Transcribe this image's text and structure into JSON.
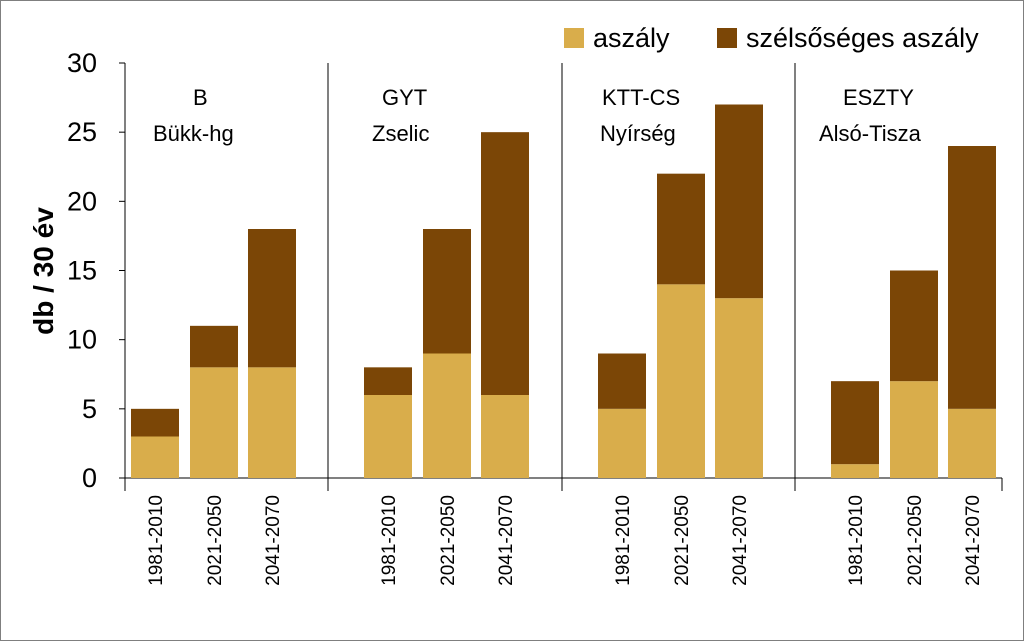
{
  "chart_data": {
    "type": "bar",
    "stacked": true,
    "xlabel": "",
    "ylabel": "db / 30 év",
    "ylim": [
      0,
      30
    ],
    "yticks": [
      0,
      5,
      10,
      15,
      20,
      25,
      30
    ],
    "grid": false,
    "legend_position": "top-right",
    "groups": [
      {
        "label_line1": "B",
        "label_line2": "Bükk-hg",
        "categories": [
          "1981-2010",
          "2021-2050",
          "2041-2070"
        ],
        "aszaly": [
          3,
          8,
          8
        ],
        "szelsoseges": [
          2,
          3,
          10
        ]
      },
      {
        "label_line1": "GYT",
        "label_line2": "Zselic",
        "categories": [
          "1981-2010",
          "2021-2050",
          "2041-2070"
        ],
        "aszaly": [
          6,
          9,
          6
        ],
        "szelsoseges": [
          2,
          9,
          19
        ]
      },
      {
        "label_line1": "KTT-CS",
        "label_line2": "Nyírség",
        "categories": [
          "1981-2010",
          "2021-2050",
          "2041-2070"
        ],
        "aszaly": [
          5,
          14,
          13
        ],
        "szelsoseges": [
          4,
          8,
          14
        ]
      },
      {
        "label_line1": "ESZTY",
        "label_line2": "Alsó-Tisza",
        "categories": [
          "1981-2010",
          "2021-2050",
          "2041-2070"
        ],
        "aszaly": [
          1,
          7,
          5
        ],
        "szelsoseges": [
          6,
          8,
          19
        ]
      }
    ],
    "series": [
      {
        "key": "aszaly",
        "name": "aszály",
        "color": "#d9ad4b"
      },
      {
        "key": "szelsoseges",
        "name": "szélsőséges aszály",
        "color": "#7b4606"
      }
    ]
  }
}
